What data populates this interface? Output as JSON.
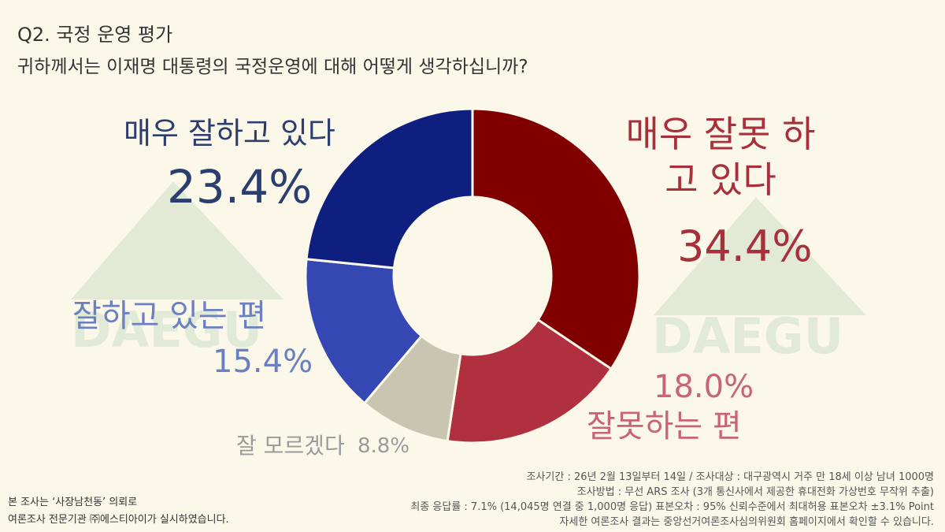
{
  "chart_data": {
    "type": "pie",
    "title": "Q2. 국정 운영 평가",
    "subtitle": "귀하께서는 이재명 대통령의 국정운영에 대해 어떻게 생각하십니까?",
    "categories": [
      "매우 잘못 하고 있다",
      "잘못하는 편",
      "잘 모르겠다",
      "잘하고 있는 편",
      "매우 잘하고 있다"
    ],
    "values": [
      34.4,
      18.0,
      8.8,
      15.4,
      23.4
    ],
    "value_labels": [
      "34.4%",
      "18.0%",
      "8.8%",
      "15.4%",
      "23.4%"
    ],
    "colors": [
      "#800000",
      "#b0303f",
      "#c8c5b0",
      "#3447b3",
      "#0e1f80"
    ],
    "label_colors": [
      "#a8303c",
      "#c86478",
      "#9a9a9a",
      "#6a80c2",
      "#2c3e6e"
    ]
  },
  "watermark": "DAEGU",
  "footnotes": [
    "조사기간 : 26년 2월 13일부터 14일 / 조사대상 : 대구광역시 거주 만 18세 이상 남녀 1000명",
    "조사방법 : 무선 ARS 조사 (3개 통신사에서 제공한 휴대전화 가상번호 무작위 추출)",
    "최종 응답률 : 7.1% (14,045명 연결 중 1,000명 응답) 표본오차 : 95% 신뢰수준에서 최대허용 표본오차 ±3.1% Point",
    "자세한 여론조사 결과는 중앙선거여론조사심의위원회 홈페이지에서 확인할 수 있습니다."
  ],
  "sponsor_note": [
    "본 조사는 ‘사장남천동’ 의뢰로",
    "여론조사 전문기관 ㈜에스티아이가 실시하였습니다."
  ]
}
